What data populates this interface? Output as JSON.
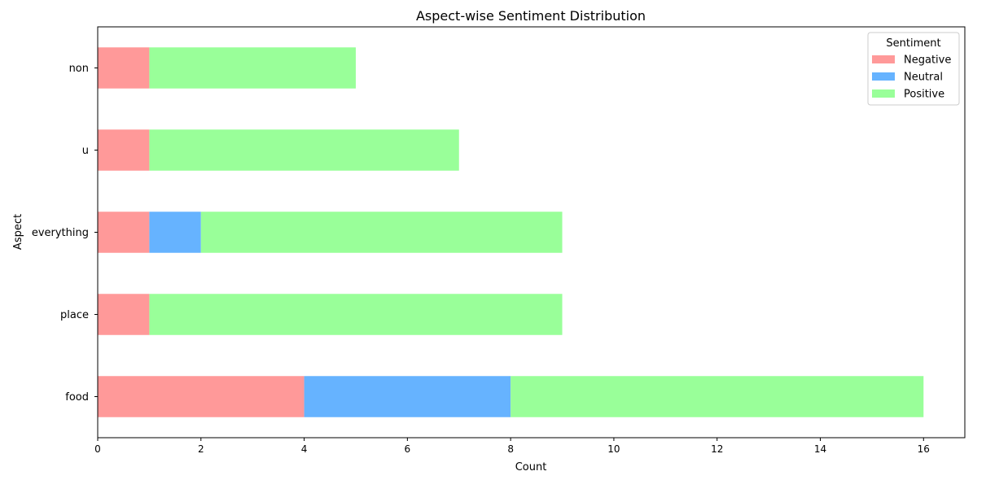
{
  "chart_data": {
    "type": "bar",
    "orientation": "horizontal",
    "stacked": true,
    "title": "Aspect-wise Sentiment Distribution",
    "xlabel": "Count",
    "ylabel": "Aspect",
    "xlim": [
      0,
      16.8
    ],
    "xticks": [
      0,
      2,
      4,
      6,
      8,
      10,
      12,
      14,
      16
    ],
    "categories": [
      "food",
      "place",
      "everything",
      "u",
      "non"
    ],
    "series": [
      {
        "name": "Negative",
        "color": "#ff9999",
        "values": [
          4,
          1,
          1,
          1,
          1
        ]
      },
      {
        "name": "Neutral",
        "color": "#66b3ff",
        "values": [
          4,
          0,
          1,
          0,
          0
        ]
      },
      {
        "name": "Positive",
        "color": "#99ff99",
        "values": [
          8,
          8,
          7,
          6,
          4
        ]
      }
    ],
    "legend": {
      "title": "Sentiment",
      "placement": "top-right"
    },
    "grid": false
  }
}
